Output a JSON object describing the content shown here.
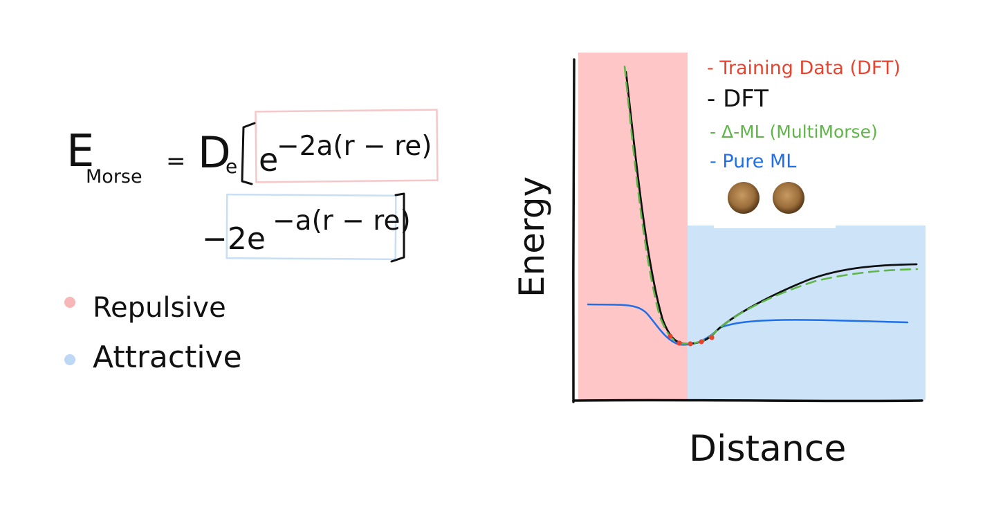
{
  "equation": {
    "lhs_E": "E",
    "lhs_subscript": "Morse",
    "equals": "=",
    "De": "D",
    "De_subscript": "e",
    "term1_base": "e",
    "term1_exponent": "−2a(r − re)",
    "term2_prefix": "−2e",
    "term2_exponent": "−a(r − re)"
  },
  "equation_legend": [
    {
      "label": "Repulsive",
      "color": "#f7b7b7"
    },
    {
      "label": "Attractive",
      "color": "#bcd8f5"
    }
  ],
  "chart_data": {
    "type": "line",
    "xlabel": "Distance",
    "ylabel": "Energy",
    "grid": false,
    "legend_placement": "top-right",
    "regions": [
      {
        "name": "Repulsive",
        "color": "#ffc6c8"
      },
      {
        "name": "Attractive",
        "color": "#cde3f8"
      }
    ],
    "legend": [
      {
        "label": "- Training Data (DFT)",
        "color": "#e8432e"
      },
      {
        "label": "- DFT",
        "color": "#111111"
      },
      {
        "label": "- Δ-ML (MultiMorse)",
        "color": "#5fb548"
      },
      {
        "label": "- Pure ML",
        "color": "#1f6fe8"
      }
    ],
    "icon": "two-atoms-icon"
  }
}
